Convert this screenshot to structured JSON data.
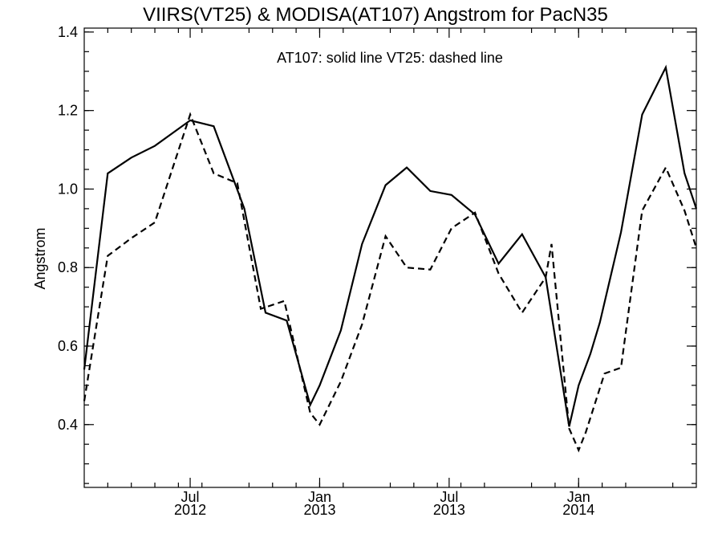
{
  "chart_data": {
    "type": "line",
    "title": "VIIRS(VT25) & MODISA(AT107)  Angstrom for PacN35",
    "ylabel": "Angstrom",
    "xlabel": "",
    "annotation": "AT107: solid line   VT25: dashed line",
    "xlim": [
      0,
      26
    ],
    "ylim": [
      0.24,
      1.41
    ],
    "y_ticks": [
      {
        "value": 0.4,
        "label": "0.4"
      },
      {
        "value": 0.6,
        "label": "0.6"
      },
      {
        "value": 0.8,
        "label": "0.8"
      },
      {
        "value": 1.0,
        "label": "1.0"
      },
      {
        "value": 1.2,
        "label": "1.2"
      },
      {
        "value": 1.4,
        "label": "1.4"
      }
    ],
    "y_minor_step": 0.05,
    "x_minor_ticks": [
      1,
      2,
      3,
      4,
      5,
      7,
      8,
      9,
      10,
      11,
      13,
      14,
      15,
      16,
      17,
      19,
      20,
      21,
      22,
      23,
      25
    ],
    "x_ticks": [
      {
        "value": 4.5,
        "label_top": "Jul",
        "label_bottom": "2012"
      },
      {
        "value": 10,
        "label_top": "Jan",
        "label_bottom": "2013"
      },
      {
        "value": 15.5,
        "label_top": "Jul",
        "label_bottom": "2013"
      },
      {
        "value": 21,
        "label_top": "Jan",
        "label_bottom": "2014"
      }
    ],
    "series": [
      {
        "style": "solid",
        "x": [
          0,
          1,
          2,
          3,
          4.5,
          5.5,
          6.8,
          7.7,
          8.6,
          9.6,
          10,
          10.9,
          11.8,
          12.8,
          13.7,
          14.7,
          15.6,
          16.6,
          17.6,
          18.6,
          19.6,
          20.6,
          21,
          21.5,
          21.9,
          22.8,
          23.7,
          24.7,
          25.5,
          26
        ],
        "y": [
          0.54,
          1.04,
          1.08,
          1.11,
          1.175,
          1.16,
          0.95,
          0.685,
          0.665,
          0.45,
          0.5,
          0.64,
          0.86,
          1.01,
          1.055,
          0.995,
          0.985,
          0.935,
          0.81,
          0.885,
          0.775,
          0.395,
          0.5,
          0.58,
          0.66,
          0.89,
          1.19,
          1.31,
          1.04,
          0.95
        ]
      },
      {
        "style": "dashed",
        "x": [
          0,
          1,
          2,
          3,
          4.5,
          5.5,
          6.5,
          7.5,
          8.5,
          9.6,
          10,
          10.9,
          11.8,
          12.8,
          13.7,
          14.7,
          15.6,
          16.6,
          17.6,
          18.6,
          19.6,
          19.85,
          20.6,
          21,
          21.3,
          22.1,
          22.8,
          23.7,
          24.7,
          25.5,
          26
        ],
        "y": [
          0.46,
          0.83,
          0.875,
          0.915,
          1.19,
          1.04,
          1.015,
          0.695,
          0.715,
          0.43,
          0.4,
          0.51,
          0.655,
          0.88,
          0.8,
          0.795,
          0.9,
          0.94,
          0.785,
          0.685,
          0.775,
          0.86,
          0.39,
          0.335,
          0.38,
          0.53,
          0.545,
          0.945,
          1.055,
          0.945,
          0.85
        ]
      }
    ]
  }
}
